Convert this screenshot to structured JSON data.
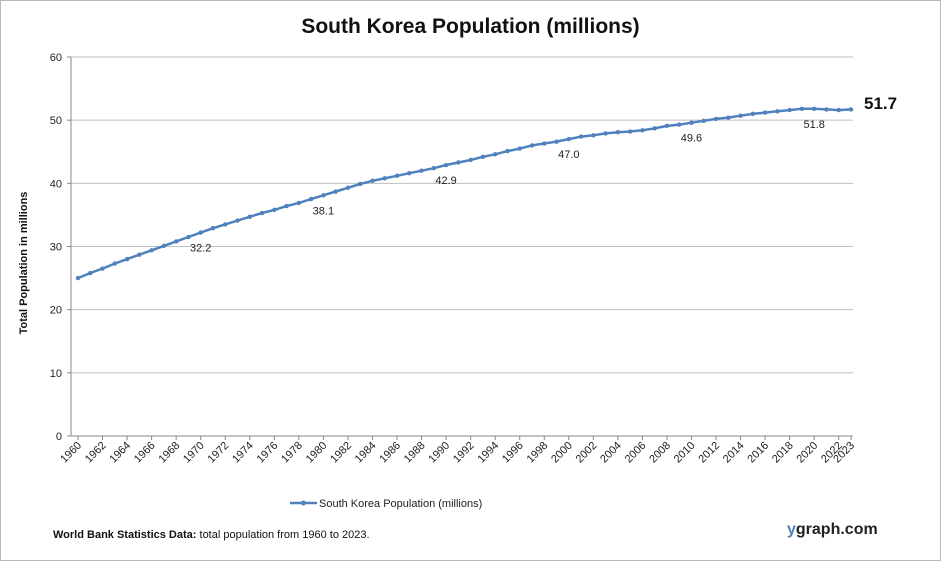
{
  "chart_data": {
    "type": "line",
    "title": "South Korea Population (millions)",
    "ylabel": "Total Population  in millions",
    "xlabel": "",
    "ylim": [
      0,
      60
    ],
    "yticks": [
      0,
      10,
      20,
      30,
      40,
      50,
      60
    ],
    "grid": "horizontal",
    "legend_position": "bottom",
    "xtick_labels": [
      "1960",
      "1962",
      "1964",
      "1966",
      "1968",
      "1970",
      "1972",
      "1974",
      "1976",
      "1978",
      "1980",
      "1982",
      "1984",
      "1986",
      "1988",
      "1990",
      "1992",
      "1994",
      "1996",
      "1998",
      "2000",
      "2002",
      "2004",
      "2006",
      "2008",
      "2010",
      "2012",
      "2014",
      "2016",
      "2018",
      "2020",
      "2022",
      "2023"
    ],
    "x": [
      1960,
      1961,
      1962,
      1963,
      1964,
      1965,
      1966,
      1967,
      1968,
      1969,
      1970,
      1971,
      1972,
      1973,
      1974,
      1975,
      1976,
      1977,
      1978,
      1979,
      1980,
      1981,
      1982,
      1983,
      1984,
      1985,
      1986,
      1987,
      1988,
      1989,
      1990,
      1991,
      1992,
      1993,
      1994,
      1995,
      1996,
      1997,
      1998,
      1999,
      2000,
      2001,
      2002,
      2003,
      2004,
      2005,
      2006,
      2007,
      2008,
      2009,
      2010,
      2011,
      2012,
      2013,
      2014,
      2015,
      2016,
      2017,
      2018,
      2019,
      2020,
      2021,
      2022,
      2023
    ],
    "series": [
      {
        "name": "South Korea Population (millions)",
        "color": "#4f81bd",
        "values": [
          25.0,
          25.8,
          26.5,
          27.3,
          28.0,
          28.7,
          29.4,
          30.1,
          30.8,
          31.5,
          32.2,
          32.9,
          33.5,
          34.1,
          34.7,
          35.3,
          35.8,
          36.4,
          36.9,
          37.5,
          38.1,
          38.7,
          39.3,
          39.9,
          40.4,
          40.8,
          41.2,
          41.6,
          42.0,
          42.4,
          42.9,
          43.3,
          43.7,
          44.2,
          44.6,
          45.1,
          45.5,
          46.0,
          46.3,
          46.6,
          47.0,
          47.4,
          47.6,
          47.9,
          48.1,
          48.2,
          48.4,
          48.7,
          49.1,
          49.3,
          49.6,
          49.9,
          50.2,
          50.4,
          50.7,
          51.0,
          51.2,
          51.4,
          51.6,
          51.8,
          51.8,
          51.7,
          51.6,
          51.7
        ]
      }
    ],
    "annotations": [
      {
        "x": 1970,
        "value": "32.2"
      },
      {
        "x": 1980,
        "value": "38.1"
      },
      {
        "x": 1990,
        "value": "42.9"
      },
      {
        "x": 2000,
        "value": "47.0"
      },
      {
        "x": 2010,
        "value": "49.6"
      },
      {
        "x": 2020,
        "value": "51.8"
      }
    ],
    "last_value_label": "51.7"
  },
  "footer": {
    "source_bold": "World Bank Statistics Data:",
    "source_text": " total population from 1960 to 2023."
  },
  "brand": {
    "first_letter": "y",
    "rest": "graph.com"
  }
}
